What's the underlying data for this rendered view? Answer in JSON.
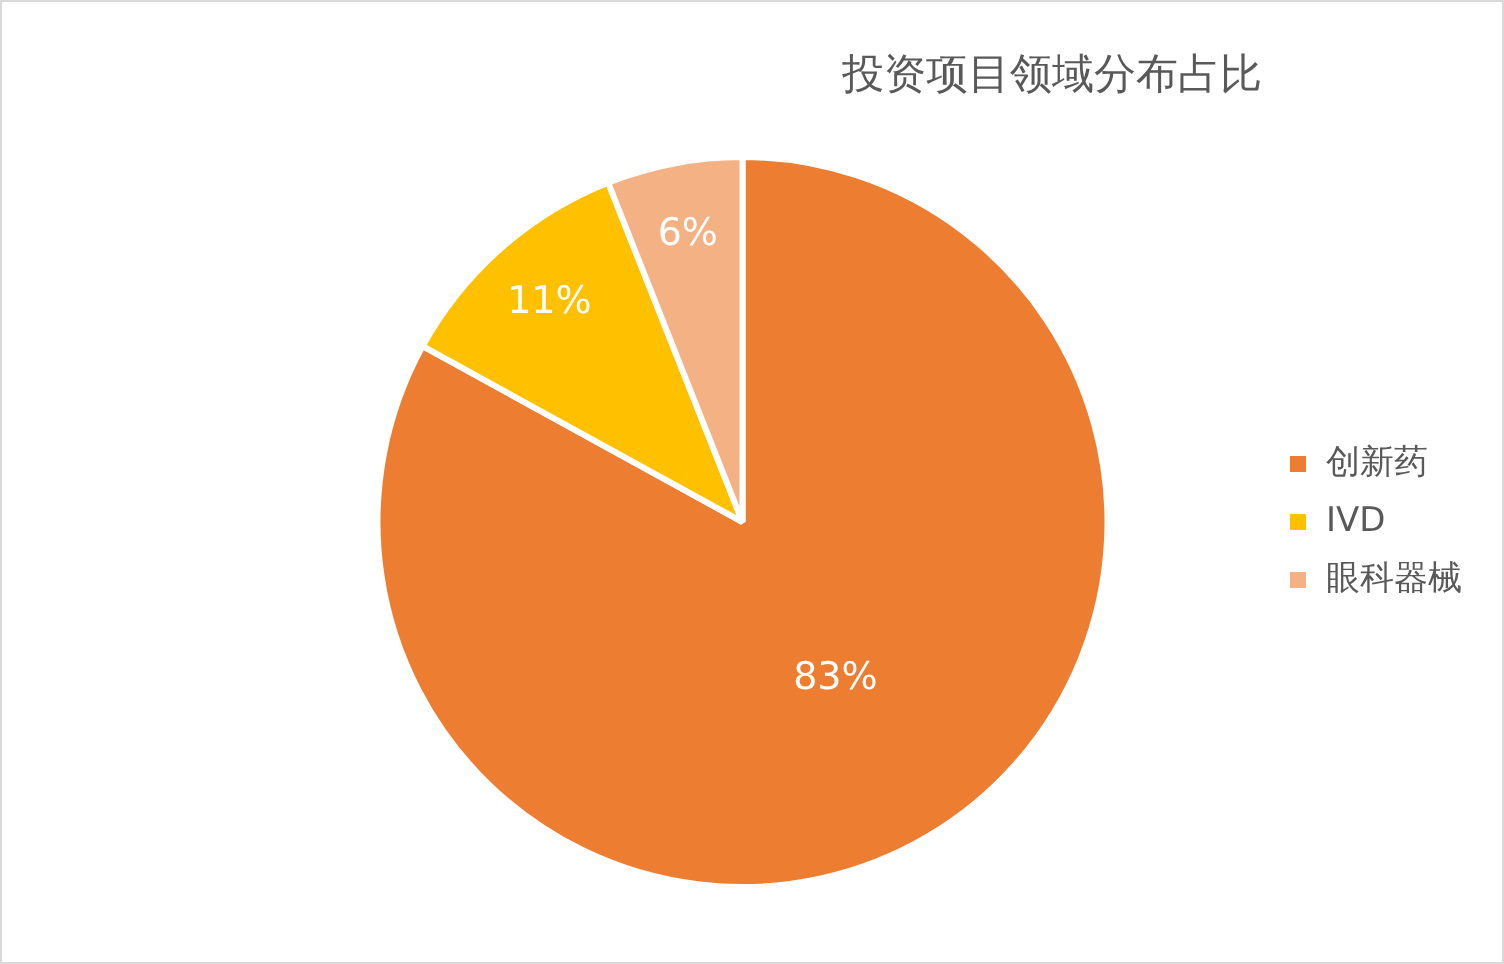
{
  "chart_data": {
    "type": "pie",
    "title": "投资项目领域分布占比",
    "categories": [
      "创新药",
      "IVD",
      "眼科器械"
    ],
    "values": [
      83,
      11,
      6
    ],
    "colors": [
      "#ed7d31",
      "#ffc000",
      "#f4b183"
    ],
    "value_labels": [
      "83%",
      "11%",
      "6%"
    ],
    "legend": "right"
  }
}
